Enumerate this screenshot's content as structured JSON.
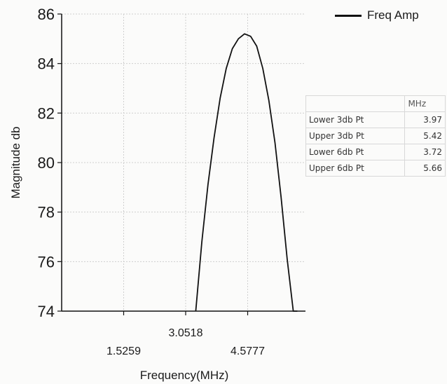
{
  "chart_data": {
    "type": "line",
    "title": "",
    "xlabel": "Frequency(MHz)",
    "ylabel": "Magnitude db",
    "xlim": [
      0,
      6
    ],
    "ylim": [
      74,
      86
    ],
    "y_ticks": [
      "74",
      "76",
      "78",
      "80",
      "82",
      "84",
      "86"
    ],
    "x_ticks": [
      {
        "value": 1.5259,
        "label": "1.5259",
        "row": 2
      },
      {
        "value": 3.0518,
        "label": "3.0518",
        "row": 1
      },
      {
        "value": 4.5777,
        "label": "4.5777",
        "row": 2
      }
    ],
    "grid": true,
    "legend_position": "top-right",
    "series": [
      {
        "name": "Freq Amp",
        "color": "#111111",
        "x": [
          3.3,
          3.45,
          3.6,
          3.75,
          3.9,
          4.05,
          4.2,
          4.35,
          4.5,
          4.65,
          4.8,
          4.95,
          5.1,
          5.25,
          5.4,
          5.55,
          5.7,
          5.8
        ],
        "y": [
          74.0,
          76.8,
          79.1,
          81.0,
          82.6,
          83.8,
          84.6,
          85.0,
          85.2,
          85.1,
          84.7,
          83.8,
          82.5,
          80.8,
          78.6,
          76.1,
          73.9,
          74.0
        ]
      }
    ]
  },
  "stats_table": {
    "unit_header": "MHz",
    "rows": [
      {
        "label": "Lower 3db Pt",
        "value": "3.97"
      },
      {
        "label": "Upper 3db Pt",
        "value": "5.42"
      },
      {
        "label": "Lower 6db Pt",
        "value": "3.72"
      },
      {
        "label": "Upper 6db Pt",
        "value": "5.66"
      }
    ]
  }
}
